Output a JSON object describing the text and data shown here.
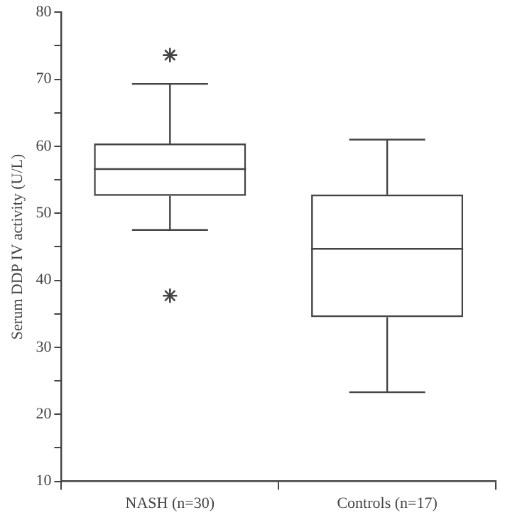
{
  "chart_data": {
    "type": "box",
    "ylabel": "Serum DDP IV activity (U/L)",
    "categories": [
      "NASH (n=30)",
      "Controls (n=17)"
    ],
    "boxes": [
      {
        "low": 47.5,
        "q1": 52.6,
        "median": 56.6,
        "q3": 60.4,
        "high": 69.3,
        "outliers": [
          73.6,
          37.7
        ]
      },
      {
        "low": 23.3,
        "q1": 34.5,
        "median": 44.7,
        "q3": 52.8,
        "high": 61
      }
    ],
    "ylim": [
      10,
      80
    ],
    "yticks": [
      10,
      {
        "value": 15,
        "label": null
      },
      20,
      {
        "value": 25,
        "label": null
      },
      30,
      {
        "value": 35,
        "label": null
      },
      40,
      {
        "value": 45,
        "label": null
      },
      50,
      {
        "value": 55,
        "label": null
      },
      60,
      {
        "value": 65,
        "label": null
      },
      70,
      {
        "value": 75,
        "label": null
      },
      80
    ],
    "grid": false,
    "legend": false
  }
}
